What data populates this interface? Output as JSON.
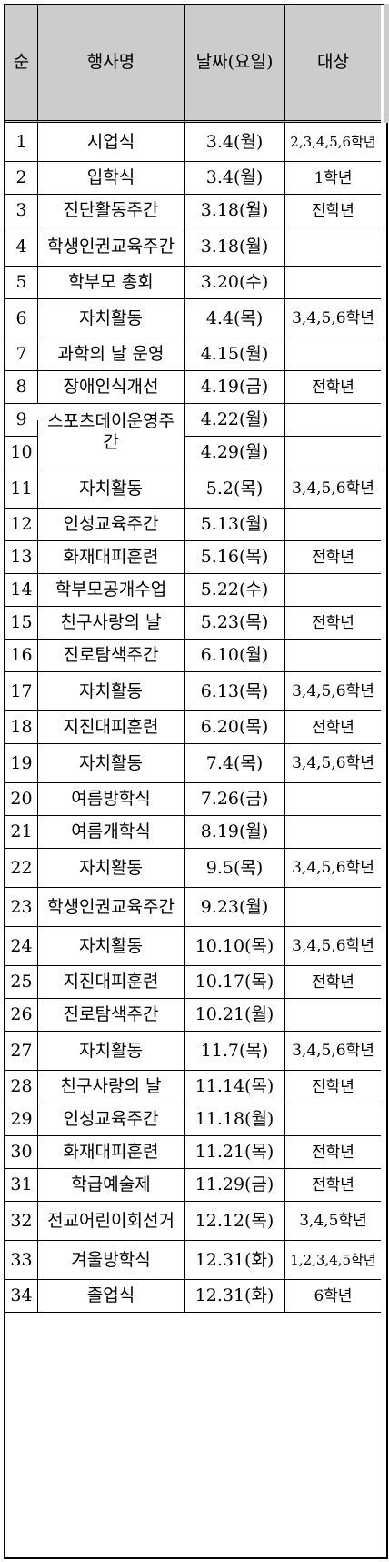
{
  "headers": {
    "no": "순",
    "event": "행사명",
    "date": "날짜(요일)",
    "target": "대상"
  },
  "rows": [
    {
      "no": "1",
      "event": "시업식",
      "date": "3.4(월)",
      "target": "2,3,4,5,6학년"
    },
    {
      "no": "2",
      "event": "입학식",
      "date": "3.4(월)",
      "target": "1학년"
    },
    {
      "no": "3",
      "event": "진단활동주간",
      "date": "3.18(월)",
      "target": "전학년"
    },
    {
      "no": "4",
      "event": "학생인권교육주간",
      "date": "3.18(월)",
      "target": ""
    },
    {
      "no": "5",
      "event": "학부모 총회",
      "date": "3.20(수)",
      "target": ""
    },
    {
      "no": "6",
      "event": "자치활동",
      "date": "4.4(목)",
      "target": "3,4,5,6학년"
    },
    {
      "no": "7",
      "event": "과학의 날 운영",
      "date": "4.15(월)",
      "target": ""
    },
    {
      "no": "8",
      "event": "장애인식개선",
      "date": "4.19(금)",
      "target": "전학년"
    },
    {
      "no": "9",
      "event": "스포츠데이운영주간",
      "date": "4.22(월)",
      "target": ""
    },
    {
      "no": "10",
      "event": "",
      "date": "4.29(월)",
      "target": ""
    },
    {
      "no": "11",
      "event": "자치활동",
      "date": "5.2(목)",
      "target": "3,4,5,6학년"
    },
    {
      "no": "12",
      "event": "인성교육주간",
      "date": "5.13(월)",
      "target": ""
    },
    {
      "no": "13",
      "event": "화재대피훈련",
      "date": "5.16(목)",
      "target": "전학년"
    },
    {
      "no": "14",
      "event": "학부모공개수업",
      "date": "5.22(수)",
      "target": ""
    },
    {
      "no": "15",
      "event": "친구사랑의 날",
      "date": "5.23(목)",
      "target": "전학년"
    },
    {
      "no": "16",
      "event": "진로탐색주간",
      "date": "6.10(월)",
      "target": ""
    },
    {
      "no": "17",
      "event": "자치활동",
      "date": "6.13(목)",
      "target": "3,4,5,6학년"
    },
    {
      "no": "18",
      "event": "지진대피훈련",
      "date": "6.20(목)",
      "target": "전학년"
    },
    {
      "no": "19",
      "event": "자치활동",
      "date": "7.4(목)",
      "target": "3,4,5,6학년"
    },
    {
      "no": "20",
      "event": "여름방학식",
      "date": "7.26(금)",
      "target": ""
    },
    {
      "no": "21",
      "event": "여름개학식",
      "date": "8.19(월)",
      "target": ""
    },
    {
      "no": "22",
      "event": "자치활동",
      "date": "9.5(목)",
      "target": "3,4,5,6학년"
    },
    {
      "no": "23",
      "event": "학생인권교육주간",
      "date": "9.23(월)",
      "target": ""
    },
    {
      "no": "24",
      "event": "자치활동",
      "date": "10.10(목)",
      "target": "3,4,5,6학년"
    },
    {
      "no": "25",
      "event": "지진대피훈련",
      "date": "10.17(목)",
      "target": "전학년"
    },
    {
      "no": "26",
      "event": "진로탐색주간",
      "date": "10.21(월)",
      "target": ""
    },
    {
      "no": "27",
      "event": "자치활동",
      "date": "11.7(목)",
      "target": "3,4,5,6학년"
    },
    {
      "no": "28",
      "event": "친구사랑의 날",
      "date": "11.14(목)",
      "target": "전학년"
    },
    {
      "no": "29",
      "event": "인성교육주간",
      "date": "11.18(월)",
      "target": ""
    },
    {
      "no": "30",
      "event": "화재대피훈련",
      "date": "11.21(목)",
      "target": "전학년"
    },
    {
      "no": "31",
      "event": "학급예술제",
      "date": "11.29(금)",
      "target": "전학년"
    },
    {
      "no": "32",
      "event": "전교어린이회선거",
      "date": "12.12(목)",
      "target": "3,4,5학년"
    },
    {
      "no": "33",
      "event": "겨울방학식",
      "date": "12.31(화)",
      "target": "1,2,3,4,5학년"
    },
    {
      "no": "34",
      "event": "졸업식",
      "date": "12.31(화)",
      "target": "6학년"
    }
  ]
}
